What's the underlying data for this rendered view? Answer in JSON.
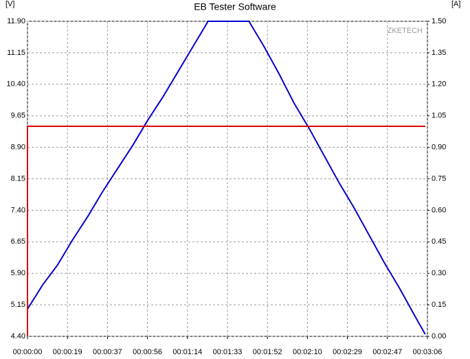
{
  "chart_data": {
    "type": "line",
    "title": "EB Tester Software",
    "y_label": "[V]",
    "y2_label": "[A]",
    "watermark": "ZKETECH",
    "xlim": [
      0,
      186
    ],
    "xticks": [
      {
        "value": 0,
        "label": "00:00:00"
      },
      {
        "value": 18.6,
        "label": "00:00:19"
      },
      {
        "value": 37.2,
        "label": "00:00:37"
      },
      {
        "value": 55.8,
        "label": "00:00:56"
      },
      {
        "value": 74.4,
        "label": "00:01:14"
      },
      {
        "value": 93,
        "label": "00:01:33"
      },
      {
        "value": 111.6,
        "label": "00:01:52"
      },
      {
        "value": 130.2,
        "label": "00:02:10"
      },
      {
        "value": 148.8,
        "label": "00:02:29"
      },
      {
        "value": 167.4,
        "label": "00:02:47"
      },
      {
        "value": 186,
        "label": "00:03:06"
      }
    ],
    "ylim": [
      4.4,
      11.9
    ],
    "yticks": [
      {
        "value": 4.4,
        "label": "4.40"
      },
      5.15,
      {
        "value": 5.9,
        "label": "5.90"
      },
      6.65,
      {
        "value": 7.4,
        "label": "7.40"
      },
      8.15,
      {
        "value": 8.9,
        "label": "8.90"
      },
      9.65,
      {
        "value": 10.4,
        "label": "10.40"
      },
      11.15,
      {
        "value": 11.9,
        "label": "11.90"
      }
    ],
    "y2lim": [
      0,
      1.5
    ],
    "y2ticks": [
      {
        "value": 0,
        "label": "0.00"
      },
      0.15,
      {
        "value": 0.3,
        "label": "0.30"
      },
      0.45,
      {
        "value": 0.6,
        "label": "0.60"
      },
      0.75,
      {
        "value": 0.9,
        "label": "0.90"
      },
      1.05,
      {
        "value": 1.2,
        "label": "1.20"
      },
      1.35,
      {
        "value": 1.5,
        "label": "1.50"
      }
    ],
    "grid": true,
    "series": [
      {
        "color": "#0000cc",
        "axis": "y",
        "x": [
          0,
          7,
          14,
          21,
          28,
          35,
          42,
          49,
          56,
          63,
          70,
          77,
          84,
          93,
          103,
          110,
          117,
          124,
          131,
          138,
          145,
          152,
          159,
          166,
          173,
          180,
          185
        ],
        "values": [
          5.05,
          5.62,
          6.1,
          6.7,
          7.25,
          7.85,
          8.4,
          8.95,
          9.55,
          10.1,
          10.7,
          11.3,
          11.9,
          11.9,
          11.9,
          11.3,
          10.65,
          9.95,
          9.35,
          8.7,
          8.05,
          7.45,
          6.8,
          6.15,
          5.55,
          4.9,
          4.45
        ]
      },
      {
        "color": "#dd0000",
        "axis": "y2",
        "x": [
          0,
          0,
          185
        ],
        "values": [
          0,
          1.0,
          1.0
        ]
      }
    ]
  }
}
